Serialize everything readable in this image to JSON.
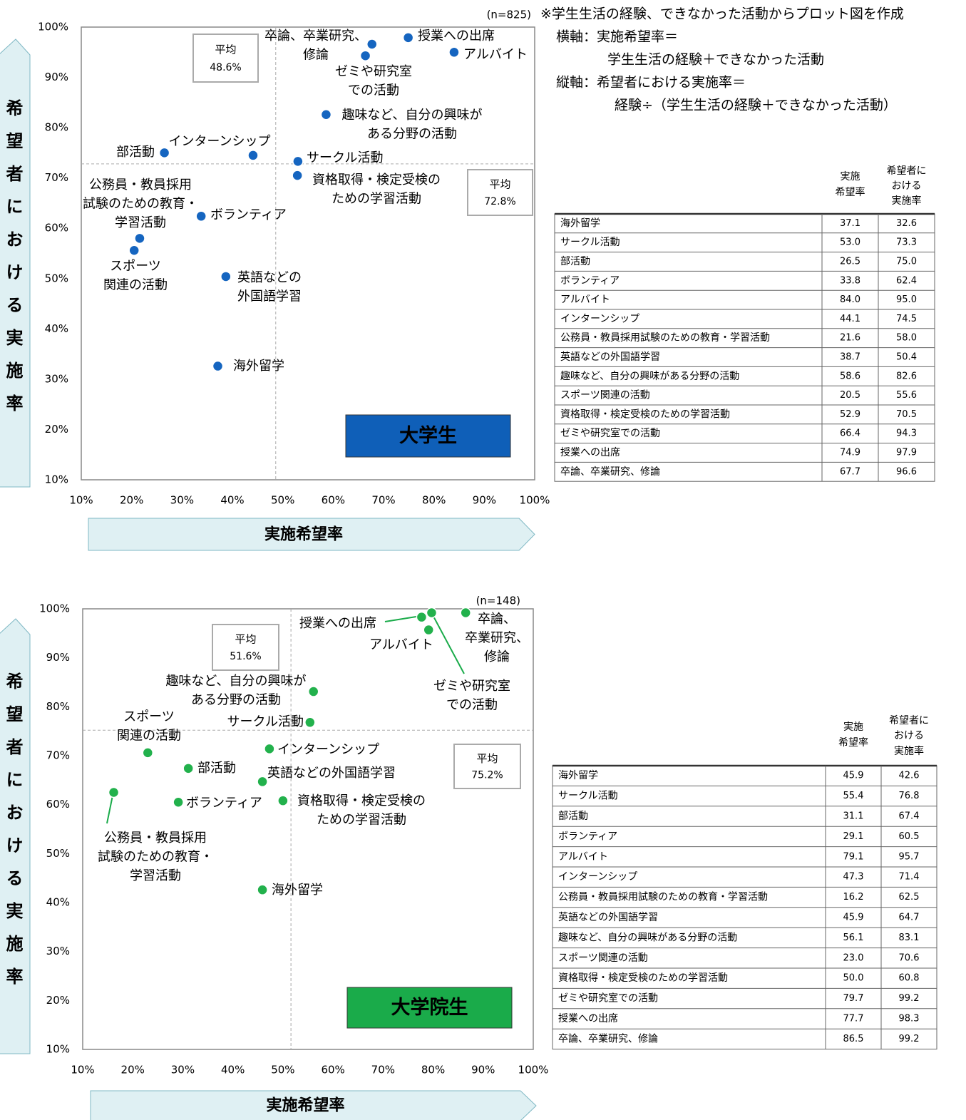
{
  "notes": [
    "※学生生活の経験、できなかった活動からプロット図を作成",
    "横軸：実施希望率＝",
    "学生生活の経験＋できなかった活動",
    "縦軸：希望者における実施率＝",
    "経験÷（学生生活の経験＋できなかった活動）"
  ],
  "chart_data": [
    {
      "type": "scatter",
      "title": "大学生",
      "n_label": "(n=825)",
      "color": "#1565c0",
      "badge_color": "#0f5fb8",
      "x_label": "実施希望率",
      "y_label": "希望者における実施率",
      "categories": [
        "海外留学",
        "サークル活動",
        "部活動",
        "ボランティア",
        "アルバイト",
        "インターンシップ",
        "公務員・教員採用試験のための教育・学習活動",
        "英語などの外国語学習",
        "趣味など、自分の興味がある分野の活動",
        "スポーツ関連の活動",
        "資格取得・検定受検のための学習活動",
        "ゼミや研究室での活動",
        "授業への出席",
        "卒論、卒業研究、修論"
      ],
      "point_labels": [
        [
          "海外留学"
        ],
        [
          "サークル活動"
        ],
        [
          "部活動"
        ],
        [
          "ボランティア"
        ],
        [
          "アルバイト"
        ],
        [
          "インターンシップ"
        ],
        [
          "公務員・教員採用",
          "試験のための教育・",
          "学習活動"
        ],
        [
          "英語などの",
          "外国語学習"
        ],
        [
          "趣味など、自分の興味が",
          "ある分野の活動"
        ],
        [
          "スポーツ",
          "関連の活動"
        ],
        [
          "資格取得・検定受検の",
          "ための学習活動"
        ],
        [
          "ゼミや研究室",
          "での活動"
        ],
        [
          "授業への出席"
        ],
        [
          "卒論、卒業研究、",
          "修論"
        ]
      ],
      "x": [
        37.1,
        53.0,
        26.5,
        33.8,
        84.0,
        44.1,
        21.6,
        38.7,
        58.6,
        20.5,
        52.9,
        66.4,
        74.9,
        67.7
      ],
      "x_labels": [
        "37.1",
        "53.0",
        "26.5",
        "33.8",
        "84.0",
        "44.1",
        "21.6",
        "38.7",
        "58.6",
        "20.5",
        "52.9",
        "66.4",
        "74.9",
        "67.7"
      ],
      "values": [
        32.6,
        73.3,
        75.0,
        62.4,
        95.0,
        74.5,
        58.0,
        50.4,
        82.6,
        55.6,
        70.5,
        94.3,
        97.9,
        96.6
      ],
      "value_labels": [
        "32.6",
        "73.3",
        "75.0",
        "62.4",
        "95.0",
        "74.5",
        "58.0",
        "50.4",
        "82.6",
        "55.6",
        "70.5",
        "94.3",
        "97.9",
        "96.6"
      ],
      "table_headers": [
        [
          "実施",
          "希望率"
        ],
        [
          "希望者に",
          "おける",
          "実施率"
        ]
      ],
      "average_title": "平均",
      "average_x": 48.6,
      "average_x_label": "48.6%",
      "average_y": 72.8,
      "average_y_label": "72.8%",
      "xlim": [
        10,
        100
      ],
      "ylim": [
        10,
        100
      ],
      "xticks": [
        {
          "value": 10,
          "label": "10%"
        },
        {
          "value": 20,
          "label": "20%"
        },
        {
          "value": 30,
          "label": "30%"
        },
        {
          "value": 40,
          "label": "40%"
        },
        {
          "value": 50,
          "label": "50%"
        },
        {
          "value": 60,
          "label": "60%"
        },
        {
          "value": 70,
          "label": "70%"
        },
        {
          "value": 80,
          "label": "80%"
        },
        {
          "value": 90,
          "label": "90%"
        },
        {
          "value": 100,
          "label": "100%"
        }
      ],
      "yticks": [
        {
          "value": 10,
          "label": "10%"
        },
        {
          "value": 20,
          "label": "20%"
        },
        {
          "value": 30,
          "label": "30%"
        },
        {
          "value": 40,
          "label": "40%"
        },
        {
          "value": 50,
          "label": "50%"
        },
        {
          "value": 60,
          "label": "60%"
        },
        {
          "value": 70,
          "label": "70%"
        },
        {
          "value": 80,
          "label": "80%"
        },
        {
          "value": 90,
          "label": "90%"
        },
        {
          "value": 100,
          "label": "100%"
        }
      ]
    },
    {
      "type": "scatter",
      "title": "大学院生",
      "n_label": "(n=148)",
      "color": "#22b14c",
      "badge_color": "#1aab4a",
      "x_label": "実施希望率",
      "y_label": "希望者における実施率",
      "categories": [
        "海外留学",
        "サークル活動",
        "部活動",
        "ボランティア",
        "アルバイト",
        "インターンシップ",
        "公務員・教員採用試験のための教育・学習活動",
        "英語などの外国語学習",
        "趣味など、自分の興味がある分野の活動",
        "スポーツ関連の活動",
        "資格取得・検定受検のための学習活動",
        "ゼミや研究室での活動",
        "授業への出席",
        "卒論、卒業研究、修論"
      ],
      "point_labels": [
        [
          "海外留学"
        ],
        [
          "サークル活動"
        ],
        [
          "部活動"
        ],
        [
          "ボランティア"
        ],
        [
          "アルバイト"
        ],
        [
          "インターンシップ"
        ],
        [
          "公務員・教員採用",
          "試験のための教育・",
          "学習活動"
        ],
        [
          "英語などの外国語学習"
        ],
        [
          "趣味など、自分の興味が",
          "ある分野の活動"
        ],
        [
          "スポーツ",
          "関連の活動"
        ],
        [
          "資格取得・検定受検の",
          "ための学習活動"
        ],
        [
          "ゼミや研究室",
          "での活動"
        ],
        [
          "授業への出席"
        ],
        [
          "卒論、",
          "卒業研究、",
          "修論"
        ]
      ],
      "x": [
        45.9,
        55.4,
        31.1,
        29.1,
        79.1,
        47.3,
        16.2,
        45.9,
        56.1,
        23.0,
        50.0,
        79.7,
        77.7,
        86.5
      ],
      "x_labels": [
        "45.9",
        "55.4",
        "31.1",
        "29.1",
        "79.1",
        "47.3",
        "16.2",
        "45.9",
        "56.1",
        "23.0",
        "50.0",
        "79.7",
        "77.7",
        "86.5"
      ],
      "values": [
        42.6,
        76.8,
        67.4,
        60.5,
        95.7,
        71.4,
        62.5,
        64.7,
        83.1,
        70.6,
        60.8,
        99.2,
        98.3,
        99.2
      ],
      "value_labels": [
        "42.6",
        "76.8",
        "67.4",
        "60.5",
        "95.7",
        "71.4",
        "62.5",
        "64.7",
        "83.1",
        "70.6",
        "60.8",
        "99.2",
        "98.3",
        "99.2"
      ],
      "table_headers": [
        [
          "実施",
          "希望率"
        ],
        [
          "希望者に",
          "おける",
          "実施率"
        ]
      ],
      "average_title": "平均",
      "average_x": 51.6,
      "average_x_label": "51.6%",
      "average_y": 75.2,
      "average_y_label": "75.2%",
      "xlim": [
        10,
        100
      ],
      "ylim": [
        10,
        100
      ],
      "xticks": [
        {
          "value": 10,
          "label": "10%"
        },
        {
          "value": 20,
          "label": "20%"
        },
        {
          "value": 30,
          "label": "30%"
        },
        {
          "value": 40,
          "label": "40%"
        },
        {
          "value": 50,
          "label": "50%"
        },
        {
          "value": 60,
          "label": "60%"
        },
        {
          "value": 70,
          "label": "70%"
        },
        {
          "value": 80,
          "label": "80%"
        },
        {
          "value": 90,
          "label": "90%"
        },
        {
          "value": 100,
          "label": "100%"
        }
      ],
      "yticks": [
        {
          "value": 10,
          "label": "10%"
        },
        {
          "value": 20,
          "label": "20%"
        },
        {
          "value": 30,
          "label": "30%"
        },
        {
          "value": 40,
          "label": "40%"
        },
        {
          "value": 50,
          "label": "50%"
        },
        {
          "value": 60,
          "label": "60%"
        },
        {
          "value": 70,
          "label": "70%"
        },
        {
          "value": 80,
          "label": "80%"
        },
        {
          "value": 90,
          "label": "90%"
        },
        {
          "value": 100,
          "label": "100%"
        }
      ]
    }
  ]
}
